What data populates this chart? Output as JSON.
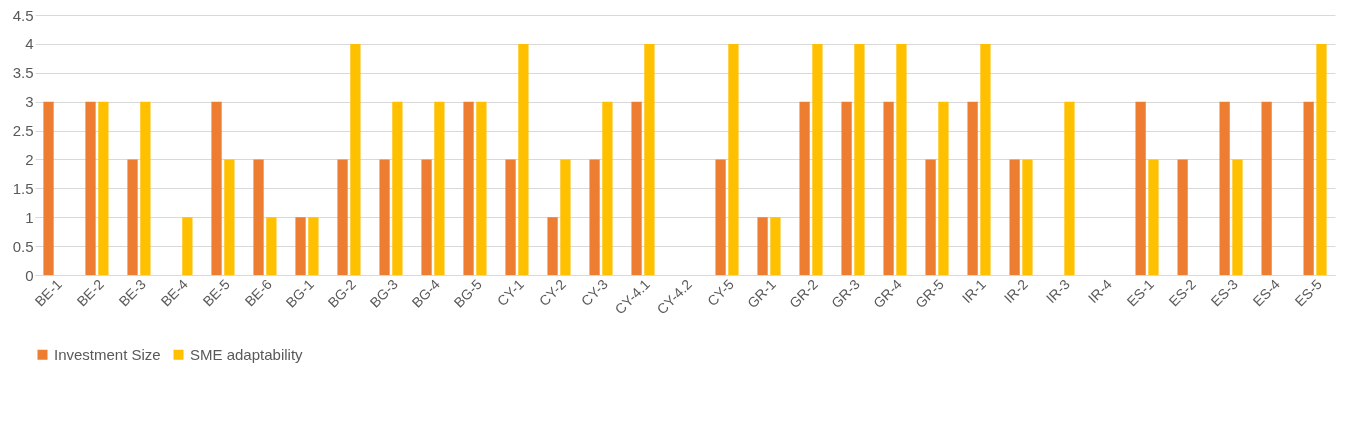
{
  "chart_data": {
    "type": "bar",
    "categories": [
      "BE-1",
      "BE-2",
      "BE-3",
      "BE-4",
      "BE-5",
      "BE-6",
      "BG-1",
      "BG-2",
      "BG-3",
      "BG-4",
      "BG-5",
      "CY-1",
      "CY-2",
      "CY-3",
      "CY-4.1",
      "CY-4.2",
      "CY-5",
      "GR-1",
      "GR-2",
      "GR-3",
      "GR-4",
      "GR-5",
      "IR-1",
      "IR-2",
      "IR-3",
      "IR-4",
      "ES-1",
      "ES-2",
      "ES-3",
      "ES-4",
      "ES-5"
    ],
    "series": [
      {
        "name": "Investment Size",
        "color": "#ed7d31",
        "values": [
          3,
          3,
          2,
          0,
          3,
          2,
          1,
          2,
          2,
          2,
          3,
          2,
          1,
          2,
          3,
          0,
          2,
          1,
          3,
          3,
          3,
          2,
          3,
          2,
          0,
          0,
          3,
          2,
          3,
          3,
          3
        ]
      },
      {
        "name": "SME adaptability",
        "color": "#ffc000",
        "values": [
          0,
          3,
          3,
          1,
          2,
          1,
          1,
          4,
          3,
          3,
          3,
          4,
          2,
          3,
          4,
          0,
          4,
          1,
          4,
          4,
          4,
          3,
          4,
          2,
          3,
          0,
          2,
          0,
          2,
          0,
          4
        ]
      }
    ],
    "ylim": [
      0,
      4.5
    ],
    "yticks": [
      0,
      0.5,
      1,
      1.5,
      2,
      2.5,
      3,
      3.5,
      4,
      4.5
    ],
    "grid": "y",
    "legend": "bottom"
  }
}
